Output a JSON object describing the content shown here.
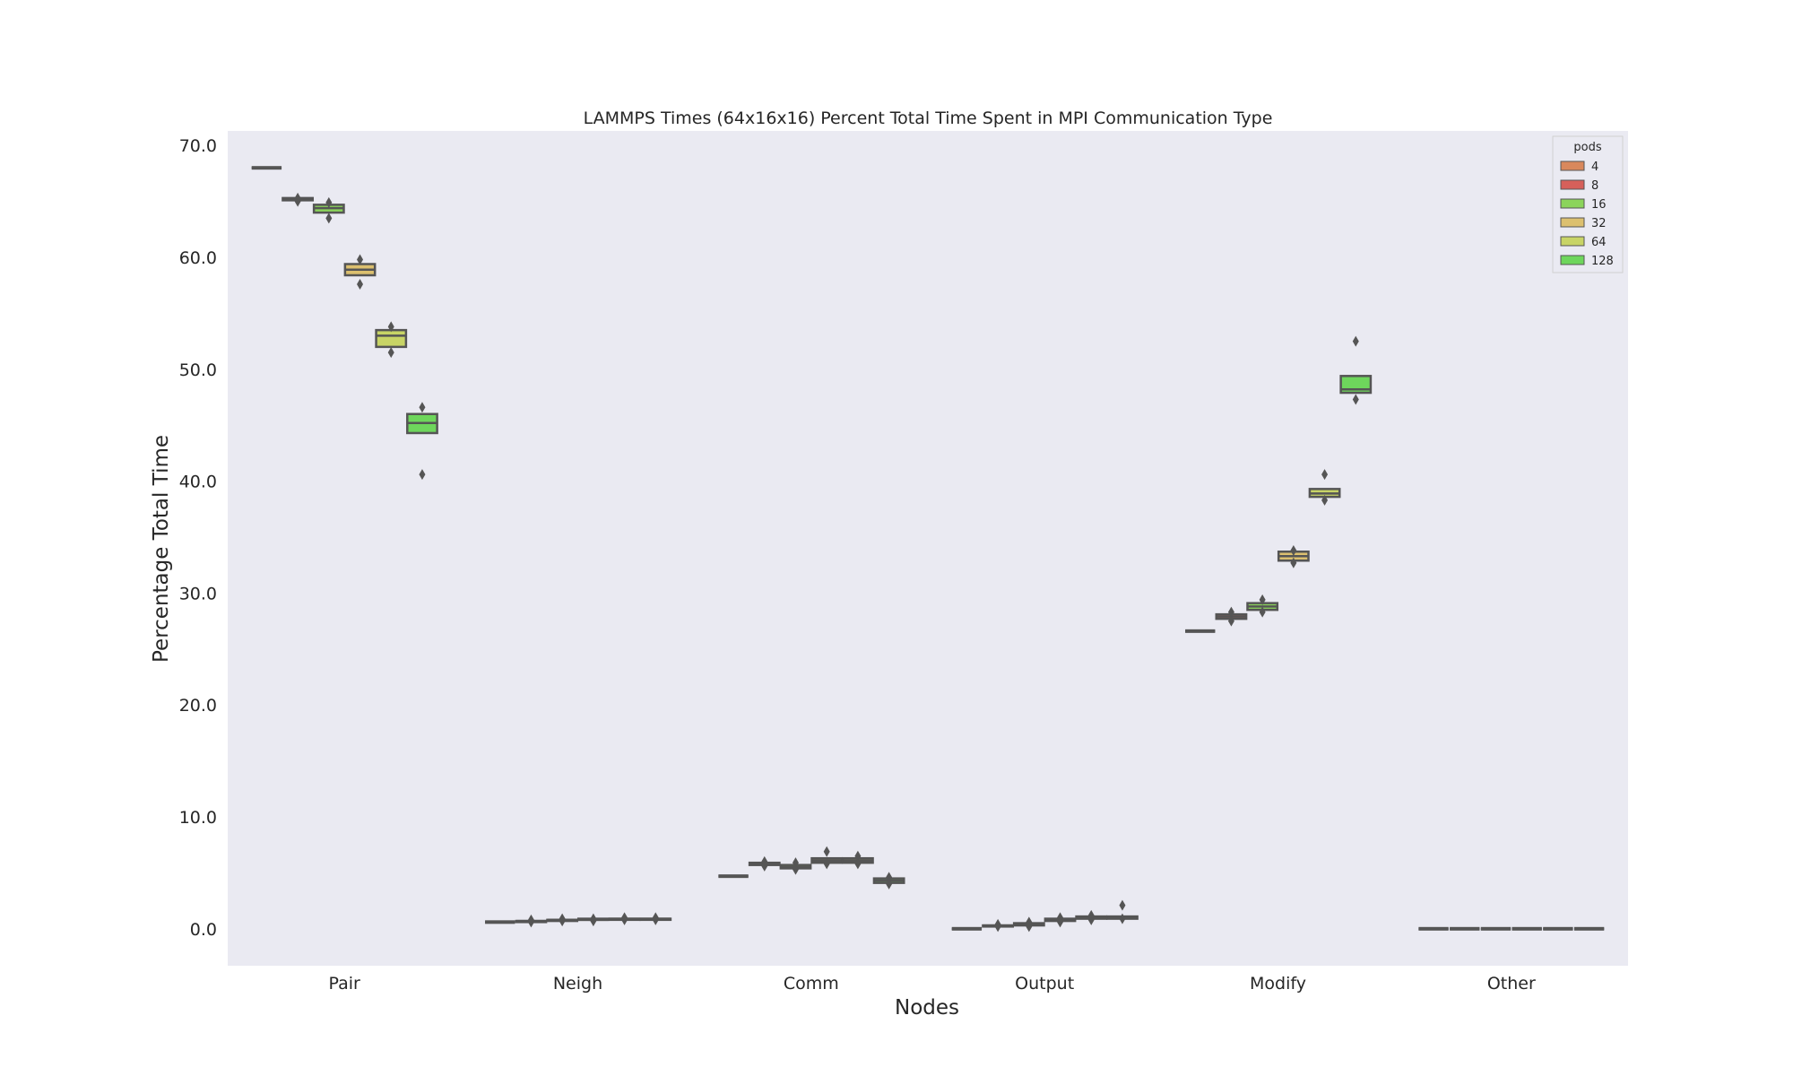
{
  "chart_data": {
    "type": "boxen",
    "title": "LAMMPS Times (64x16x16) Percent Total Time Spent in MPI Communication Type",
    "xlabel": "Nodes",
    "ylabel": "Percentage Total Time",
    "categories": [
      "Pair",
      "Neigh",
      "Comm",
      "Output",
      "Modify",
      "Other"
    ],
    "yticks": [
      "0.0",
      "10.0",
      "20.0",
      "30.0",
      "40.0",
      "50.0",
      "60.0",
      "70.0"
    ],
    "ylim": [
      -3.3,
      71.3
    ],
    "grid": false,
    "legend": {
      "title": "pods",
      "position": "top-right"
    },
    "series": [
      {
        "name": "4",
        "color": "#d9885c",
        "values": [
          {
            "low": 68.0,
            "q1": 68.0,
            "median": 68.0,
            "q3": 68.0,
            "high": 68.0,
            "outliers": []
          },
          {
            "low": 0.6,
            "q1": 0.6,
            "median": 0.6,
            "q3": 0.6,
            "high": 0.6,
            "outliers": []
          },
          {
            "low": 4.7,
            "q1": 4.7,
            "median": 4.7,
            "q3": 4.7,
            "high": 4.7,
            "outliers": []
          },
          {
            "low": 0.0,
            "q1": 0.0,
            "median": 0.0,
            "q3": 0.0,
            "high": 0.0,
            "outliers": []
          },
          {
            "low": 26.6,
            "q1": 26.6,
            "median": 26.6,
            "q3": 26.6,
            "high": 26.6,
            "outliers": []
          },
          {
            "low": 0.0,
            "q1": 0.0,
            "median": 0.0,
            "q3": 0.0,
            "high": 0.0,
            "outliers": []
          }
        ]
      },
      {
        "name": "8",
        "color": "#d6605a",
        "values": [
          {
            "low": 65.1,
            "q1": 65.1,
            "median": 65.2,
            "q3": 65.3,
            "high": 65.3,
            "outliers": [
              65.3,
              65.0
            ]
          },
          {
            "low": 0.6,
            "q1": 0.6,
            "median": 0.7,
            "q3": 0.7,
            "high": 0.7,
            "outliers": [
              0.8,
              0.6
            ]
          },
          {
            "low": 5.6,
            "q1": 5.7,
            "median": 5.8,
            "q3": 5.9,
            "high": 6.0,
            "outliers": [
              6.0,
              5.6
            ]
          },
          {
            "low": 0.2,
            "q1": 0.2,
            "median": 0.3,
            "q3": 0.3,
            "high": 0.3,
            "outliers": [
              0.4,
              0.2
            ]
          },
          {
            "low": 27.6,
            "q1": 27.7,
            "median": 27.9,
            "q3": 28.1,
            "high": 28.2,
            "outliers": [
              28.3,
              27.5
            ]
          },
          {
            "low": 0.0,
            "q1": 0.0,
            "median": 0.0,
            "q3": 0.0,
            "high": 0.0,
            "outliers": []
          }
        ]
      },
      {
        "name": "16",
        "color": "#8bd45b",
        "values": [
          {
            "low": 64.0,
            "q1": 64.0,
            "median": 64.4,
            "q3": 64.7,
            "high": 64.7,
            "outliers": [
              64.9,
              63.5
            ]
          },
          {
            "low": 0.7,
            "q1": 0.7,
            "median": 0.8,
            "q3": 0.8,
            "high": 0.8,
            "outliers": [
              0.9,
              0.7
            ]
          },
          {
            "low": 5.4,
            "q1": 5.4,
            "median": 5.5,
            "q3": 5.7,
            "high": 5.7,
            "outliers": [
              5.9,
              5.3
            ]
          },
          {
            "low": 0.3,
            "q1": 0.3,
            "median": 0.4,
            "q3": 0.5,
            "high": 0.5,
            "outliers": [
              0.6,
              0.2
            ]
          },
          {
            "low": 28.5,
            "q1": 28.5,
            "median": 28.8,
            "q3": 29.1,
            "high": 29.1,
            "outliers": [
              29.4,
              28.3
            ]
          },
          {
            "low": 0.0,
            "q1": 0.0,
            "median": 0.0,
            "q3": 0.0,
            "high": 0.0,
            "outliers": []
          }
        ]
      },
      {
        "name": "32",
        "color": "#dcc06f",
        "values": [
          {
            "low": 58.4,
            "q1": 58.4,
            "median": 58.9,
            "q3": 59.4,
            "high": 59.4,
            "outliers": [
              59.8,
              57.6
            ]
          },
          {
            "low": 0.8,
            "q1": 0.8,
            "median": 0.8,
            "q3": 0.9,
            "high": 0.9,
            "outliers": [
              0.9,
              0.7
            ]
          },
          {
            "low": 5.9,
            "q1": 5.9,
            "median": 6.1,
            "q3": 6.3,
            "high": 6.3,
            "outliers": [
              6.9,
              5.8
            ]
          },
          {
            "low": 0.7,
            "q1": 0.7,
            "median": 0.8,
            "q3": 0.9,
            "high": 0.9,
            "outliers": [
              1.0,
              0.6
            ]
          },
          {
            "low": 32.9,
            "q1": 32.9,
            "median": 33.3,
            "q3": 33.7,
            "high": 33.7,
            "outliers": [
              33.8,
              32.7
            ]
          },
          {
            "low": 0.0,
            "q1": 0.0,
            "median": 0.0,
            "q3": 0.0,
            "high": 0.0,
            "outliers": []
          }
        ]
      },
      {
        "name": "64",
        "color": "#c8d466",
        "values": [
          {
            "low": 52.0,
            "q1": 52.0,
            "median": 53.0,
            "q3": 53.5,
            "high": 53.5,
            "outliers": [
              53.8,
              51.5
            ]
          },
          {
            "low": 0.8,
            "q1": 0.8,
            "median": 0.9,
            "q3": 0.9,
            "high": 0.9,
            "outliers": [
              1.0,
              0.8
            ]
          },
          {
            "low": 5.9,
            "q1": 5.9,
            "median": 6.1,
            "q3": 6.3,
            "high": 6.3,
            "outliers": [
              6.5,
              5.8
            ]
          },
          {
            "low": 0.9,
            "q1": 0.9,
            "median": 1.0,
            "q3": 1.1,
            "high": 1.1,
            "outliers": [
              1.2,
              0.8
            ]
          },
          {
            "low": 38.6,
            "q1": 38.6,
            "median": 38.9,
            "q3": 39.3,
            "high": 39.3,
            "outliers": [
              40.6,
              38.3
            ]
          },
          {
            "low": 0.0,
            "q1": 0.0,
            "median": 0.0,
            "q3": 0.0,
            "high": 0.0,
            "outliers": []
          }
        ]
      },
      {
        "name": "128",
        "color": "#6ed65c",
        "values": [
          {
            "low": 44.3,
            "q1": 44.3,
            "median": 45.2,
            "q3": 46.0,
            "high": 46.0,
            "outliers": [
              46.6,
              40.6
            ]
          },
          {
            "low": 0.8,
            "q1": 0.8,
            "median": 0.9,
            "q3": 0.9,
            "high": 0.9,
            "outliers": [
              1.0,
              0.8
            ]
          },
          {
            "low": 4.1,
            "q1": 4.1,
            "median": 4.3,
            "q3": 4.5,
            "high": 4.5,
            "outliers": [
              4.6,
              4.0
            ]
          },
          {
            "low": 0.9,
            "q1": 0.9,
            "median": 1.0,
            "q3": 1.1,
            "high": 1.1,
            "outliers": [
              2.1,
              0.9
            ]
          },
          {
            "low": 47.9,
            "q1": 47.9,
            "median": 48.2,
            "q3": 49.4,
            "high": 49.4,
            "outliers": [
              52.5,
              47.3
            ]
          },
          {
            "low": 0.0,
            "q1": 0.0,
            "median": 0.0,
            "q3": 0.0,
            "high": 0.0,
            "outliers": []
          }
        ]
      }
    ]
  }
}
